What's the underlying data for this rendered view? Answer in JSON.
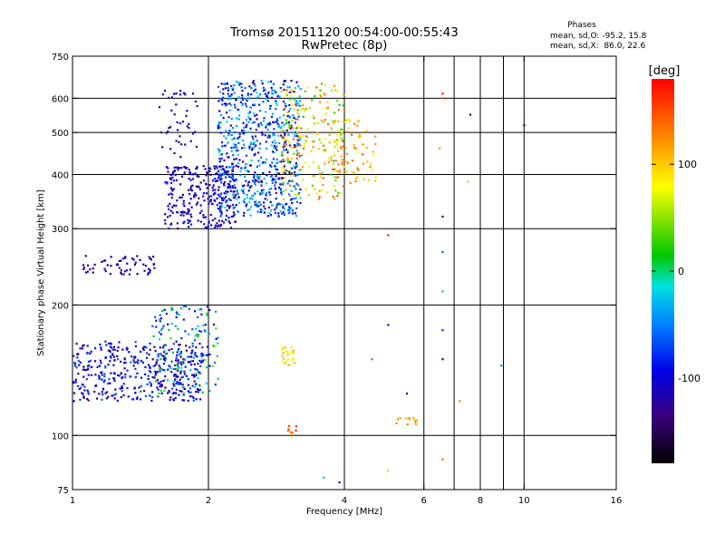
{
  "chart_data": {
    "type": "scatter",
    "title": "Tromsø 20151120 00:54:00-00:55:43",
    "subtitle": "RwPretec (8p)",
    "xlabel": "Frequency [MHz]",
    "ylabel": "Stationary phase Virtual Height [km]",
    "x_scale": "log",
    "y_scale": "log",
    "xlim": [
      1,
      16
    ],
    "ylim": [
      75,
      750
    ],
    "x_ticks": [
      1,
      2,
      4,
      6,
      8,
      10,
      16
    ],
    "y_ticks": [
      75,
      100,
      200,
      300,
      400,
      500,
      600,
      750
    ],
    "x_gridlines": [
      2,
      4,
      6,
      7,
      8,
      9,
      10
    ],
    "y_gridlines": [
      100,
      200,
      300,
      400,
      500,
      600
    ],
    "phase_stats": {
      "heading": "Phases",
      "line1": "mean, sd,O: -95.2, 15.8",
      "line2": "mean, sd,X:  86.0, 22.6"
    },
    "colorbar": {
      "label": "[deg]",
      "ticks": [
        "100",
        "0",
        "-100"
      ],
      "tick_values": [
        100,
        0,
        -100
      ],
      "range": [
        -180,
        180
      ]
    },
    "clusters": [
      {
        "f": [
          1.0,
          1.95
        ],
        "h": [
          120,
          165
        ],
        "phase": [
          -140,
          -60
        ],
        "n": 420
      },
      {
        "f": [
          1.5,
          2.1
        ],
        "h": [
          125,
          200
        ],
        "phase": [
          -120,
          40
        ],
        "n": 150
      },
      {
        "f": [
          1.05,
          1.55
        ],
        "h": [
          235,
          260
        ],
        "phase": [
          -140,
          -100
        ],
        "n": 60
      },
      {
        "f": [
          1.6,
          2.3
        ],
        "h": [
          300,
          420
        ],
        "phase": [
          -140,
          -80
        ],
        "n": 280
      },
      {
        "f": [
          2.1,
          3.2
        ],
        "h": [
          320,
          660
        ],
        "phase": [
          -130,
          -10
        ],
        "n": 700
      },
      {
        "f": [
          2.9,
          4.0
        ],
        "h": [
          350,
          650
        ],
        "phase": [
          20,
          150
        ],
        "n": 220
      },
      {
        "f": [
          3.8,
          4.7
        ],
        "h": [
          380,
          540
        ],
        "phase": [
          80,
          140
        ],
        "n": 70
      },
      {
        "f": [
          1.55,
          1.9
        ],
        "h": [
          430,
          630
        ],
        "phase": [
          -140,
          -100
        ],
        "n": 45
      },
      {
        "f": [
          2.9,
          3.1
        ],
        "h": [
          145,
          160
        ],
        "phase": [
          70,
          110
        ],
        "n": 25
      },
      {
        "f": [
          3.0,
          3.15
        ],
        "h": [
          100,
          106
        ],
        "phase": [
          130,
          170
        ],
        "n": 8
      },
      {
        "f": [
          5.2,
          5.8
        ],
        "h": [
          106,
          110
        ],
        "phase": [
          110,
          130
        ],
        "n": 12
      }
    ],
    "points": [
      {
        "x": 6.6,
        "y": 615,
        "phase": 165
      },
      {
        "x": 6.6,
        "y": 600,
        "phase": 150
      },
      {
        "x": 6.6,
        "y": 320,
        "phase": -110
      },
      {
        "x": 6.6,
        "y": 265,
        "phase": -60
      },
      {
        "x": 6.6,
        "y": 215,
        "phase": -30
      },
      {
        "x": 6.6,
        "y": 175,
        "phase": -80
      },
      {
        "x": 6.6,
        "y": 150,
        "phase": -100
      },
      {
        "x": 6.6,
        "y": 88,
        "phase": 140
      },
      {
        "x": 8.9,
        "y": 145,
        "phase": -40
      },
      {
        "x": 10.0,
        "y": 520,
        "phase": -150
      },
      {
        "x": 7.6,
        "y": 550,
        "phase": -110
      },
      {
        "x": 7.2,
        "y": 120,
        "phase": 130
      },
      {
        "x": 6.5,
        "y": 460,
        "phase": 120
      },
      {
        "x": 7.5,
        "y": 385,
        "phase": 100
      },
      {
        "x": 5.0,
        "y": 290,
        "phase": 170
      },
      {
        "x": 5.0,
        "y": 180,
        "phase": -90
      },
      {
        "x": 4.6,
        "y": 150,
        "phase": 150
      },
      {
        "x": 5.5,
        "y": 125,
        "phase": -100
      },
      {
        "x": 3.6,
        "y": 80,
        "phase": -30
      },
      {
        "x": 3.9,
        "y": 78,
        "phase": -120
      },
      {
        "x": 5.0,
        "y": 83,
        "phase": 100
      }
    ]
  }
}
